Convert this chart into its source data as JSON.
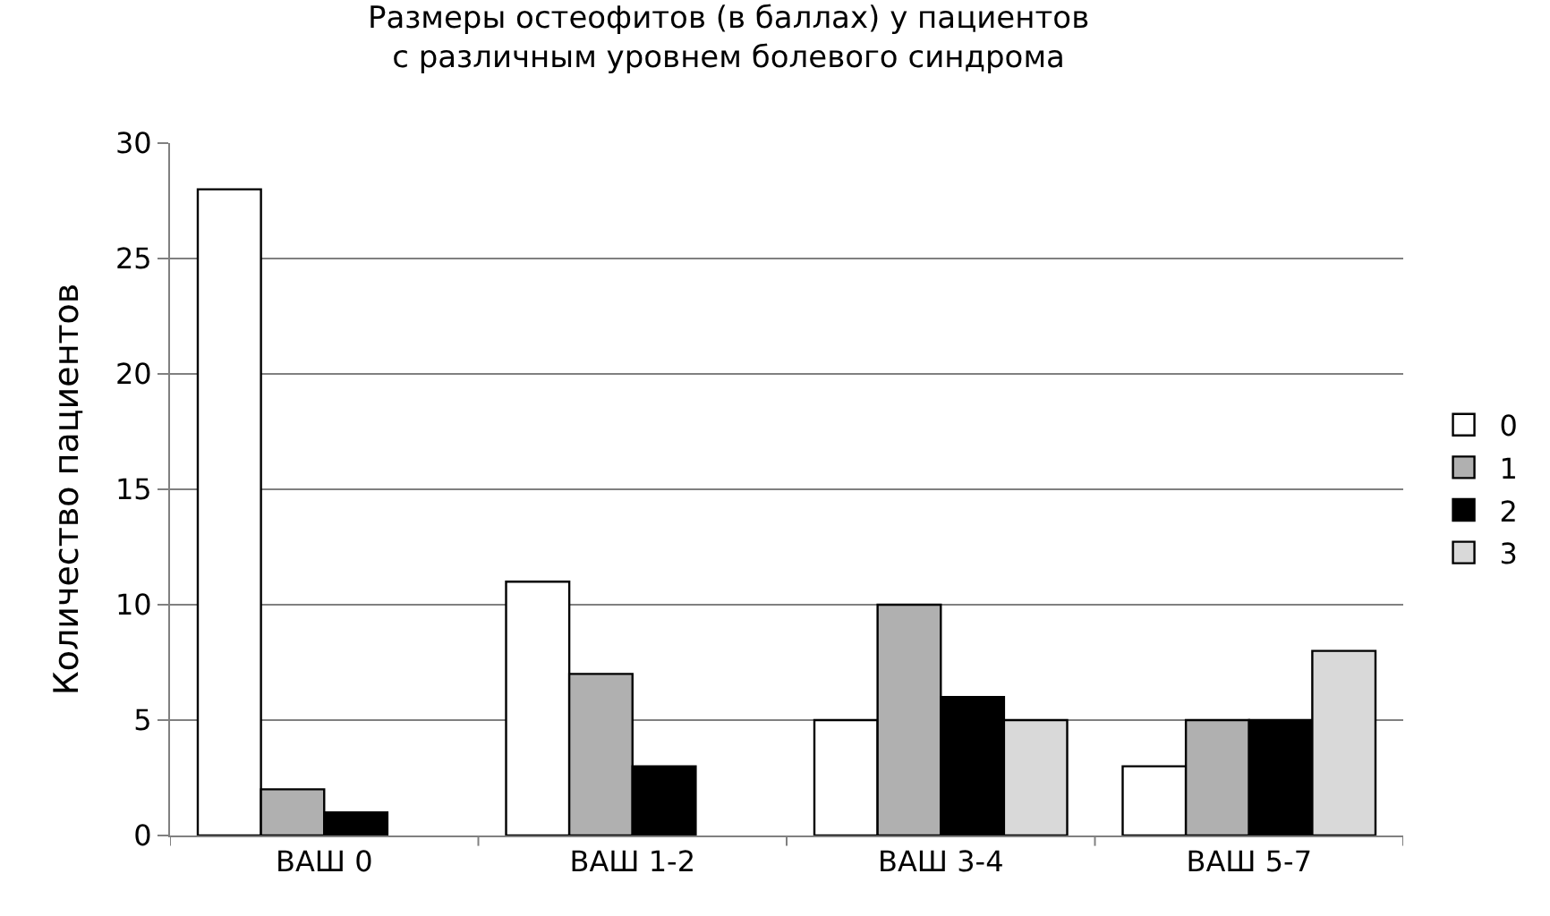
{
  "chart_data": {
    "type": "bar",
    "title": "Размеры остеофитов (в баллах) у пациентов\nс различным уровнем болевого синдрома",
    "ylabel": "Количество пациентов",
    "categories": [
      "ВАШ 0",
      "ВАШ 1-2",
      "ВАШ 3-4",
      "ВАШ 5-7"
    ],
    "series": [
      {
        "name": "0",
        "color": "#ffffff",
        "values": [
          28,
          11,
          5,
          3
        ]
      },
      {
        "name": "1",
        "color": "#b0b0b0",
        "values": [
          2,
          7,
          10,
          5
        ]
      },
      {
        "name": "2",
        "color": "#000000",
        "values": [
          1,
          3,
          6,
          5
        ]
      },
      {
        "name": "3",
        "color": "#d9d9d9",
        "values": [
          null,
          null,
          5,
          8
        ]
      }
    ],
    "ylim": [
      0,
      30
    ],
    "yticks": [
      0,
      5,
      10,
      15,
      20,
      25,
      30
    ],
    "grid": "y",
    "legend": "right"
  }
}
